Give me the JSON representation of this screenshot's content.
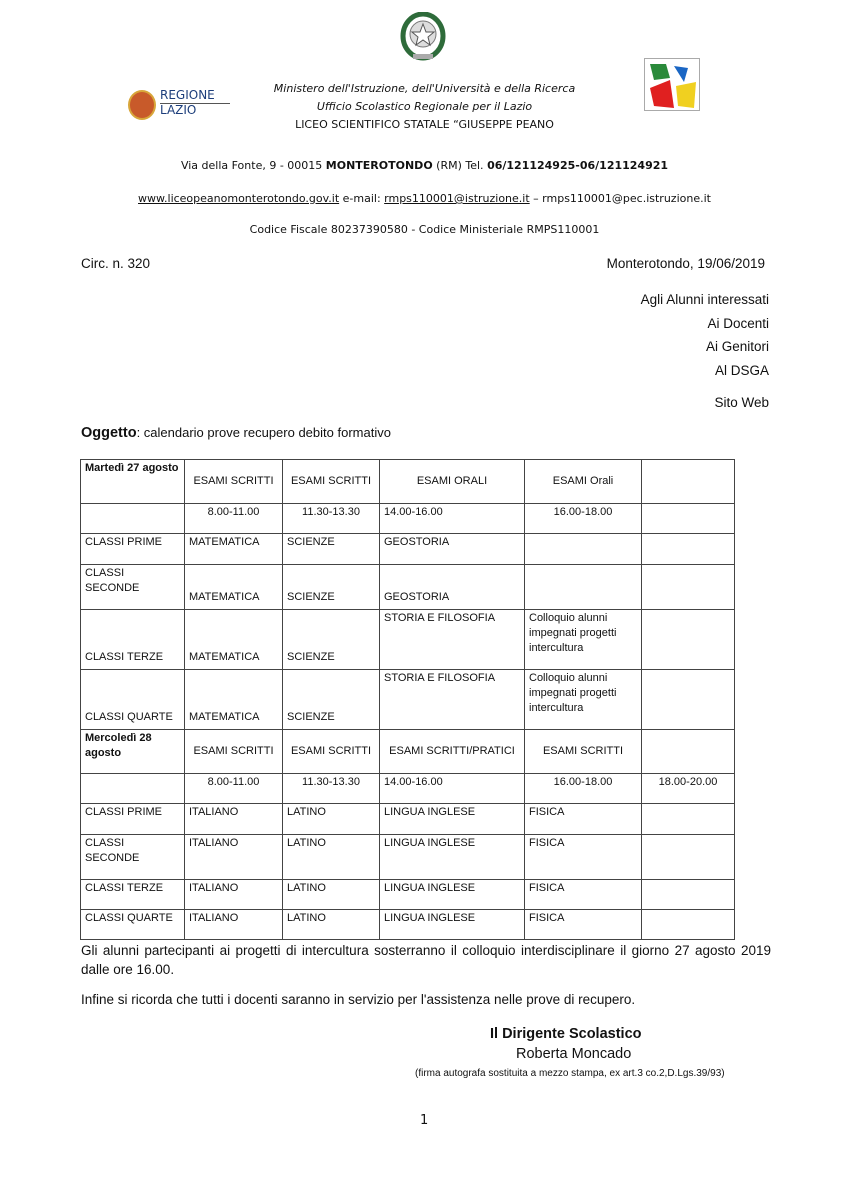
{
  "header": {
    "ministry": "Ministero dell'Istruzione, dell'Università e della Ricerca",
    "office": "Ufficio Scolastico Regionale per il Lazio",
    "school": "LICEO SCIENTIFICO STATALE “GIUSEPPE PEANO",
    "region_logo": [
      "REGIONE",
      "LAZIO"
    ],
    "address_pre": "Via della Fonte, 9 - 00015 ",
    "address_city": "MONTEROTONDO",
    "address_mid": " (RM)   Tel. ",
    "address_tel": "06/121124925-06/121124921",
    "website": "www.liceopeanomonterotondo.gov.it",
    "email_label": "   e-mail: ",
    "email": "rmps110001@istruzione.it",
    "pec": " – rmps110001@pec.istruzione.it",
    "codes": "Codice Fiscale 80237390580 -  Codice Ministeriale  RMPS110001"
  },
  "circ": "Circ. n. 320",
  "date": "Monterotondo, 19/06/2019",
  "recipients": [
    "Agli Alunni interessati",
    "Ai Docenti",
    "Ai Genitori",
    "Al DSGA",
    "Sito Web"
  ],
  "subject_label": "Oggetto",
  "subject": ": calendario prove recupero debito formativo",
  "table": [
    [
      "Martedì 27 agosto",
      "ESAMI SCRITTI",
      "ESAMI SCRITTI",
      "ESAMI ORALI",
      "ESAMI Orali",
      ""
    ],
    [
      "",
      "8.00-11.00",
      "11.30-13.30",
      "14.00-16.00",
      "16.00-18.00",
      ""
    ],
    [
      "CLASSI PRIME",
      "MATEMATICA",
      "SCIENZE",
      "GEOSTORIA",
      "",
      ""
    ],
    [
      "CLASSI SECONDE",
      "MATEMATICA",
      "SCIENZE",
      "GEOSTORIA",
      "",
      ""
    ],
    [
      "CLASSI TERZE",
      "MATEMATICA",
      "SCIENZE",
      "STORIA E FILOSOFIA",
      "Colloquio alunni impegnati progetti intercultura",
      ""
    ],
    [
      "CLASSI QUARTE",
      "MATEMATICA",
      "SCIENZE",
      "STORIA E FILOSOFIA",
      "Colloquio alunni impegnati progetti intercultura",
      ""
    ],
    [
      "Mercoledì 28 agosto",
      "ESAMI SCRITTI",
      "ESAMI SCRITTI",
      "ESAMI SCRITTI/PRATICI",
      "ESAMI SCRITTI",
      ""
    ],
    [
      "",
      "8.00-11.00",
      "11.30-13.30",
      "14.00-16.00",
      "16.00-18.00",
      "18.00-20.00"
    ],
    [
      "CLASSI PRIME",
      "ITALIANO",
      "LATINO",
      "LINGUA INGLESE",
      " FISICA",
      ""
    ],
    [
      "CLASSI SECONDE",
      "ITALIANO",
      "LATINO",
      "LINGUA INGLESE",
      " FISICA",
      ""
    ],
    [
      "CLASSI TERZE",
      "ITALIANO",
      "LATINO",
      "LINGUA INGLESE",
      "FISICA",
      ""
    ],
    [
      "CLASSI QUARTE",
      "ITALIANO",
      "LATINO",
      "LINGUA INGLESE",
      " FISICA",
      ""
    ]
  ],
  "para1": "Gli alunni partecipanti ai progetti di intercultura sosterranno il colloquio interdisciplinare il giorno 27 agosto 2019 dalle ore 16.00.",
  "para2": "Infine si ricorda che tutti i docenti saranno in servizio per l'assistenza nelle prove di recupero.",
  "signature": {
    "title": "Il Dirigente Scolastico",
    "name": "Roberta Moncado",
    "note": "(firma autografa sostituita a mezzo stampa, ex art.3 co.2,D.Lgs.39/93)"
  },
  "page_number": "1"
}
